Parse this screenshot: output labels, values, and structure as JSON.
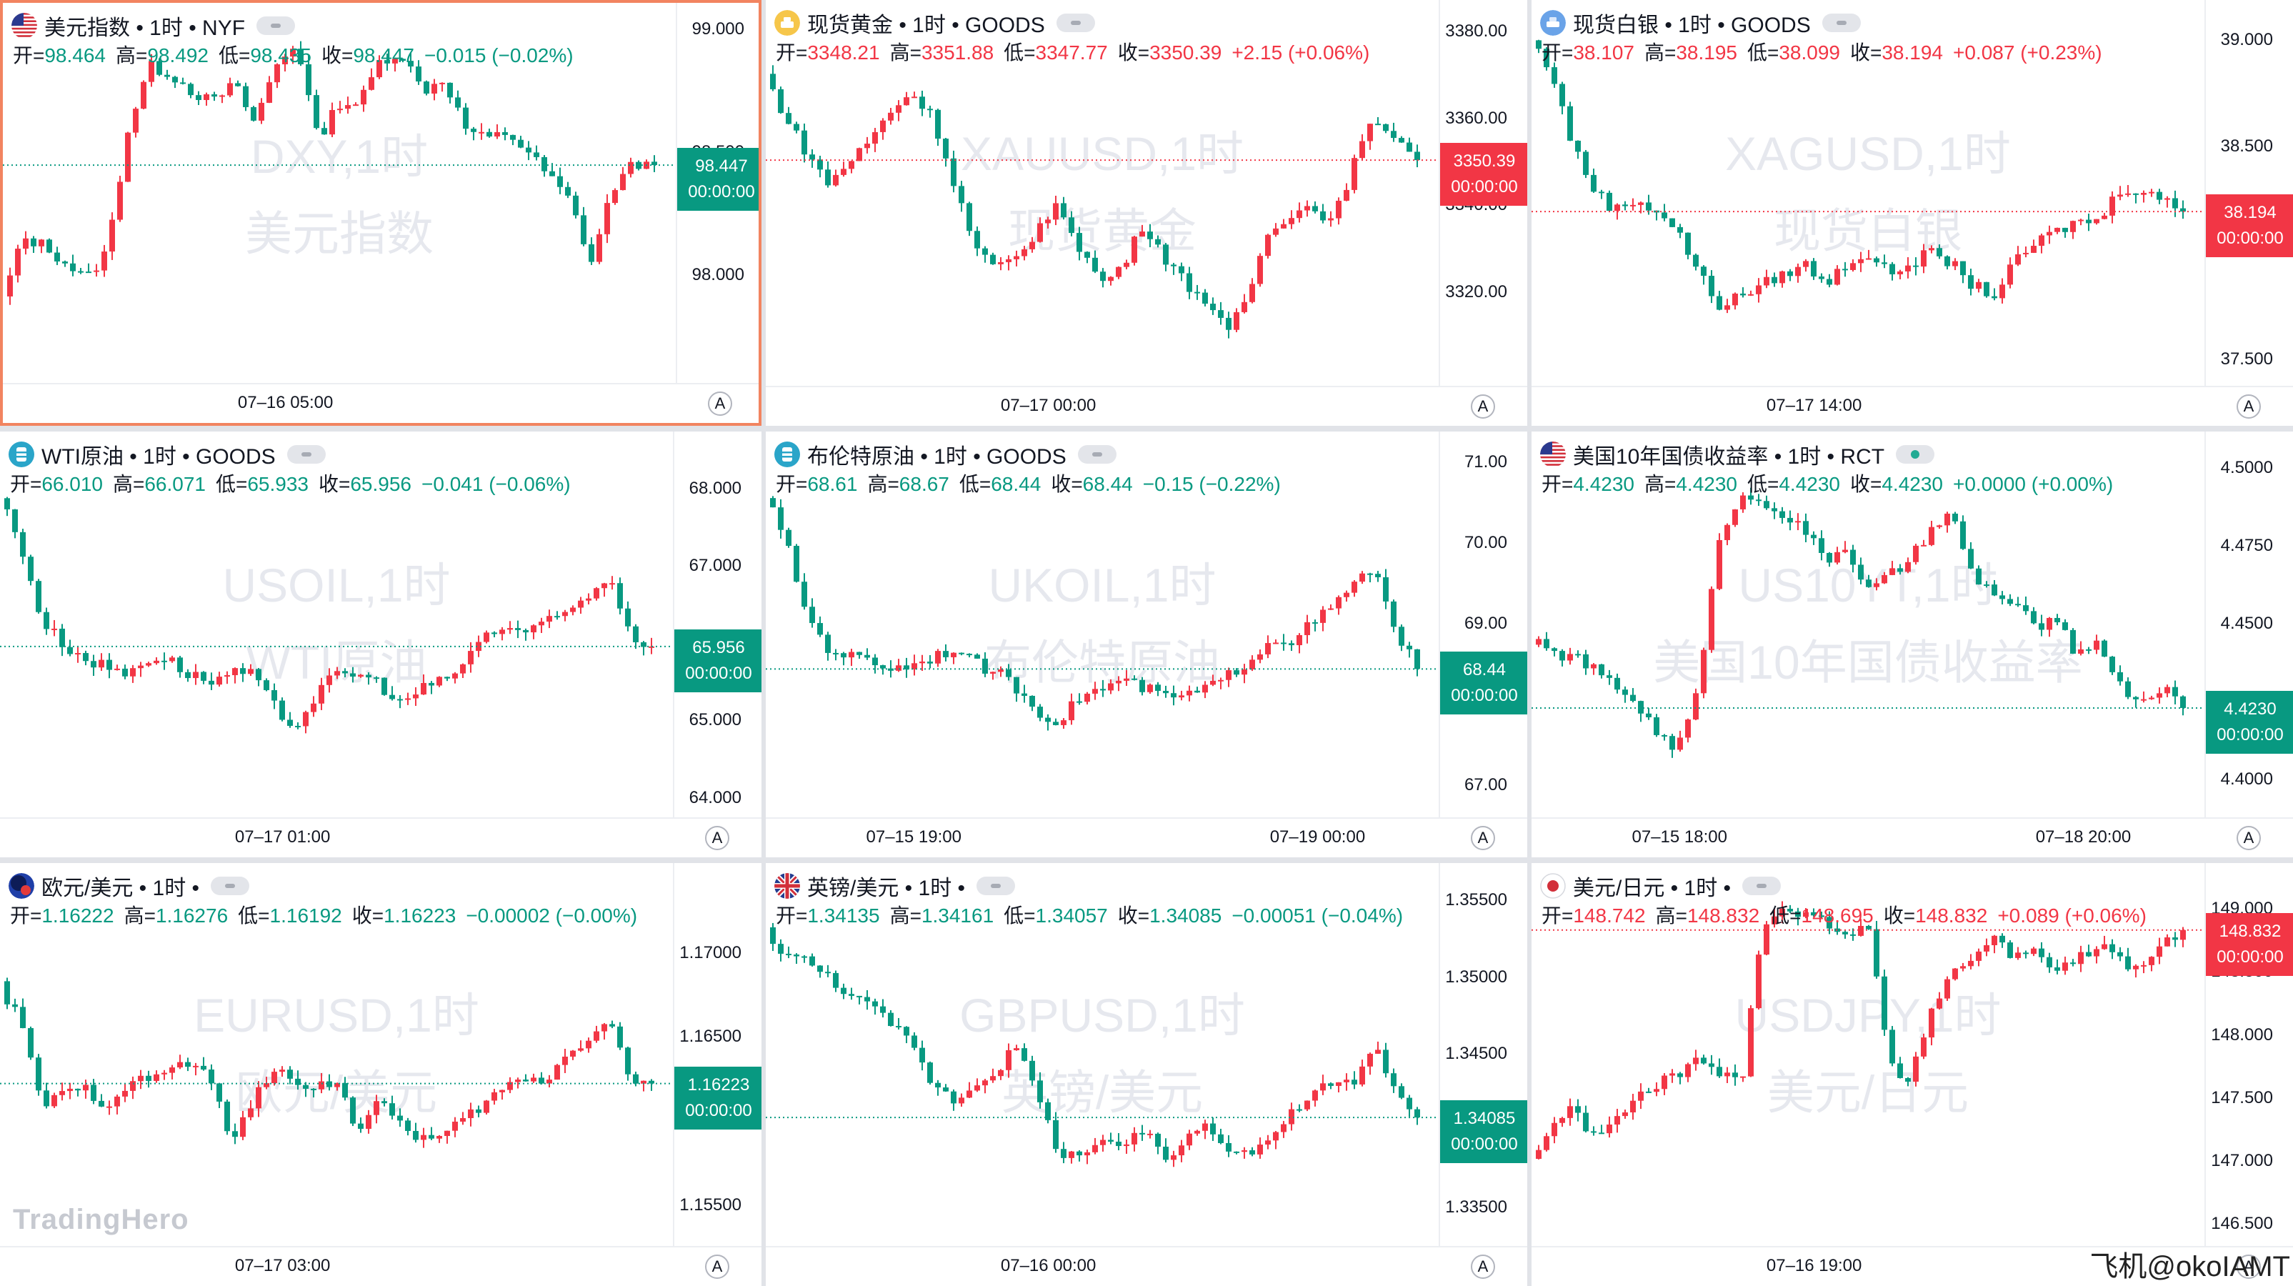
{
  "colors": {
    "up": "#f23645",
    "down": "#089981",
    "selected_border": "#f28460"
  },
  "brand": "TradingHero",
  "credit": "飞机@okoIAMT",
  "panels": [
    {
      "id": "dxy",
      "selected": true,
      "icon": "us-flag-icon",
      "title": "美元指数 • 1时 • NYF",
      "ohlc": {
        "o": "98.464",
        "h": "98.492",
        "l": "98.435",
        "c": "98.447",
        "chg": "−0.015 (−0.02%)",
        "dir": "down"
      },
      "watermark": [
        "DXY,1时",
        "美元指数"
      ],
      "y_ticks": [
        "99.000",
        "98.500",
        "98.000"
      ],
      "last_price": "98.447",
      "countdown": "00:00:00",
      "x_ticks": [
        "07–16 05:00"
      ],
      "auto": "A",
      "chart_data": {
        "type": "candlestick",
        "ylim": [
          97.6,
          99.05
        ],
        "last": 98.447,
        "path": [
          97.9,
          98.15,
          98.12,
          98.05,
          97.98,
          98.1,
          98.6,
          98.85,
          98.82,
          98.75,
          98.7,
          98.78,
          98.62,
          98.85,
          98.95,
          98.55,
          98.7,
          98.7,
          98.88,
          98.9,
          98.75,
          98.8,
          98.6,
          98.55,
          98.58,
          98.5,
          98.4,
          98.3,
          98.05,
          98.35,
          98.45,
          98.45
        ]
      }
    },
    {
      "id": "xau",
      "selected": false,
      "icon": "gold-icon",
      "title": "现货黄金 • 1时 • GOODS",
      "ohlc": {
        "o": "3348.21",
        "h": "3351.88",
        "l": "3347.77",
        "c": "3350.39",
        "chg": "+2.15 (+0.06%)",
        "dir": "up"
      },
      "watermark": [
        "XAUUSD,1时",
        "现货黄金"
      ],
      "y_ticks": [
        "3380.00",
        "3360.00",
        "3340.00",
        "3320.00"
      ],
      "last_price": "3350.39",
      "countdown": "00:00:00",
      "x_ticks": [
        "07–17 00:00"
      ],
      "auto": "A",
      "chart_data": {
        "type": "candlestick",
        "ylim": [
          3302,
          3384
        ],
        "last": 3350.39,
        "path": [
          3370,
          3360,
          3352,
          3345,
          3350,
          3355,
          3362,
          3366,
          3360,
          3345,
          3330,
          3325,
          3328,
          3335,
          3340,
          3330,
          3322,
          3326,
          3336,
          3328,
          3322,
          3318,
          3310,
          3320,
          3335,
          3338,
          3340,
          3336,
          3350,
          3360,
          3356,
          3350
        ]
      }
    },
    {
      "id": "xag",
      "selected": false,
      "icon": "silver-icon",
      "title": "现货白银 • 1时 • GOODS",
      "ohlc": {
        "o": "38.107",
        "h": "38.195",
        "l": "38.099",
        "c": "38.194",
        "chg": "+0.087 (+0.23%)",
        "dir": "up"
      },
      "watermark": [
        "XAGUSD,1时",
        "现货白银"
      ],
      "y_ticks": [
        "39.000",
        "38.500",
        "37.500"
      ],
      "last_price": "38.194",
      "countdown": "00:00:00",
      "x_ticks": [
        "07–17 14:00"
      ],
      "auto": "A",
      "chart_data": {
        "type": "candlestick",
        "ylim": [
          37.45,
          39.12
        ],
        "last": 38.194,
        "path": [
          39.0,
          38.85,
          38.5,
          38.3,
          38.2,
          38.25,
          38.2,
          38.1,
          37.9,
          37.75,
          37.8,
          37.85,
          37.9,
          37.95,
          37.85,
          37.95,
          38.0,
          37.9,
          37.95,
          38.0,
          37.95,
          37.85,
          37.8,
          37.95,
          38.05,
          38.1,
          38.15,
          38.15,
          38.3,
          38.3,
          38.25,
          38.2
        ]
      }
    },
    {
      "id": "usoil",
      "selected": false,
      "icon": "oil-icon",
      "title": "WTI原油 • 1时 • GOODS",
      "ohlc": {
        "o": "66.010",
        "h": "66.071",
        "l": "65.933",
        "c": "65.956",
        "chg": "−0.041 (−0.06%)",
        "dir": "down"
      },
      "watermark": [
        "USOIL,1时",
        "WTI原油"
      ],
      "y_ticks": [
        "68.000",
        "67.000",
        "65.000",
        "64.000"
      ],
      "last_price": "65.956",
      "countdown": "00:00:00",
      "x_ticks": [
        "07–17 01:00"
      ],
      "auto": "A",
      "chart_data": {
        "type": "candlestick",
        "ylim": [
          63.95,
          68.55
        ],
        "last": 65.956,
        "path": [
          67.9,
          67.3,
          66.3,
          66.0,
          65.8,
          65.7,
          65.6,
          65.8,
          65.8,
          65.6,
          65.5,
          65.6,
          65.6,
          65.2,
          64.9,
          65.3,
          65.6,
          65.6,
          65.5,
          65.2,
          65.4,
          65.5,
          65.7,
          66.1,
          66.2,
          66.15,
          66.25,
          66.4,
          66.6,
          66.9,
          66.1,
          65.95
        ]
      }
    },
    {
      "id": "ukoil",
      "selected": false,
      "icon": "oil-icon",
      "title": "布伦特原油 • 1时 • GOODS",
      "ohlc": {
        "o": "68.61",
        "h": "68.67",
        "l": "68.44",
        "c": "68.44",
        "chg": "−0.15 (−0.22%)",
        "dir": "down"
      },
      "watermark": [
        "UKOIL,1时",
        "布伦特原油"
      ],
      "y_ticks": [
        "71.00",
        "70.00",
        "69.00",
        "67.00"
      ],
      "last_price": "68.44",
      "countdown": "00:00:00",
      "x_ticks": [
        "07–15 19:00",
        "07–19 00:00"
      ],
      "auto": "A",
      "chart_data": {
        "type": "candlestick",
        "ylim": [
          66.8,
          71.2
        ],
        "last": 68.44,
        "path": [
          70.6,
          70.0,
          69.1,
          68.7,
          68.6,
          68.55,
          68.45,
          68.5,
          68.6,
          68.7,
          68.5,
          68.4,
          68.2,
          67.9,
          67.8,
          68.1,
          68.2,
          68.3,
          68.2,
          68.1,
          68.1,
          68.2,
          68.35,
          68.55,
          68.8,
          68.8,
          69.0,
          69.2,
          69.5,
          69.7,
          68.8,
          68.5
        ]
      }
    },
    {
      "id": "us10y",
      "selected": false,
      "icon": "us-flag-icon",
      "title": "美国10年国债收益率 • 1时 • RCT",
      "ohlc": {
        "o": "4.4230",
        "h": "4.4230",
        "l": "4.4230",
        "c": "4.4230",
        "chg": "+0.0000 (+0.00%)",
        "dir": "down"
      },
      "watermark": [
        "US10YT,1时",
        "美国10年国债收益率"
      ],
      "y_ticks": [
        "4.5000",
        "4.4750",
        "4.4500",
        "4.4000"
      ],
      "last_price": "4.4230",
      "countdown": "00:00:00",
      "x_ticks": [
        "07–15 18:00",
        "07–18 20:00"
      ],
      "auto": "A",
      "chart_data": {
        "type": "candlestick",
        "ylim": [
          4.393,
          4.507
        ],
        "last": 4.423,
        "path": [
          4.445,
          4.44,
          4.44,
          4.435,
          4.43,
          4.425,
          4.415,
          4.41,
          4.43,
          4.48,
          4.49,
          4.49,
          4.485,
          4.48,
          4.47,
          4.475,
          4.46,
          4.465,
          4.47,
          4.48,
          4.485,
          4.465,
          4.46,
          4.455,
          4.45,
          4.45,
          4.44,
          4.445,
          4.43,
          4.425,
          4.43,
          4.423
        ]
      }
    },
    {
      "id": "eurusd",
      "selected": false,
      "icon": "eu-flag-icon",
      "title": "欧元/美元 • 1时 •",
      "ohlc": {
        "o": "1.16222",
        "h": "1.16276",
        "l": "1.16192",
        "c": "1.16223",
        "chg": "−0.00002 (−0.00%)",
        "dir": "down"
      },
      "watermark": [
        "EURUSD,1时",
        "欧元/美元"
      ],
      "y_ticks": [
        "1.17000",
        "1.16500",
        "1.15500"
      ],
      "last_price": "1.16223",
      "countdown": "00:00:00",
      "x_ticks": [
        "07–17 03:00"
      ],
      "auto": "A",
      "chart_data": {
        "type": "candlestick",
        "ylim": [
          1.1535,
          1.1745
        ],
        "last": 1.16223,
        "path": [
          1.168,
          1.166,
          1.161,
          1.1615,
          1.162,
          1.161,
          1.162,
          1.1625,
          1.163,
          1.1635,
          1.1625,
          1.159,
          1.161,
          1.163,
          1.1625,
          1.162,
          1.1625,
          1.1595,
          1.161,
          1.16,
          1.159,
          1.159,
          1.16,
          1.161,
          1.162,
          1.1625,
          1.1625,
          1.164,
          1.165,
          1.166,
          1.1625,
          1.16223
        ]
      }
    },
    {
      "id": "gbpusd",
      "selected": false,
      "icon": "uk-flag-icon",
      "title": "英镑/美元 • 1时 •",
      "ohlc": {
        "o": "1.34135",
        "h": "1.34161",
        "l": "1.34057",
        "c": "1.34085",
        "chg": "−0.00051 (−0.04%)",
        "dir": "down"
      },
      "watermark": [
        "GBPUSD,1时",
        "英镑/美元"
      ],
      "y_ticks": [
        "1.35500",
        "1.35000",
        "1.34500",
        "1.33500"
      ],
      "last_price": "1.34085",
      "countdown": "00:00:00",
      "x_ticks": [
        "07–16 00:00"
      ],
      "auto": "A",
      "chart_data": {
        "type": "candlestick",
        "ylim": [
          1.3335,
          1.3565
        ],
        "last": 1.34085,
        "path": [
          1.353,
          1.3515,
          1.351,
          1.35,
          1.349,
          1.348,
          1.347,
          1.3455,
          1.343,
          1.342,
          1.343,
          1.344,
          1.3455,
          1.342,
          1.3385,
          1.3385,
          1.339,
          1.339,
          1.34,
          1.338,
          1.3395,
          1.3405,
          1.339,
          1.3385,
          1.3395,
          1.341,
          1.3425,
          1.343,
          1.343,
          1.3455,
          1.3425,
          1.34085
        ]
      }
    },
    {
      "id": "usdjpy",
      "selected": false,
      "icon": "jp-flag-icon",
      "title": "美元/日元 • 1时 •",
      "ohlc": {
        "o": "148.742",
        "h": "148.832",
        "l": "148.695",
        "c": "148.832",
        "chg": "+0.089 (+0.06%)",
        "dir": "up"
      },
      "watermark": [
        "USDJPY,1时",
        "美元/日元"
      ],
      "y_ticks": [
        "149.000",
        "148.500",
        "148.000",
        "147.500",
        "147.000",
        "146.500"
      ],
      "last_price": "148.832",
      "countdown": "00:00:00",
      "x_ticks": [
        "07–16 19:00"
      ],
      "auto": "A",
      "chart_data": {
        "type": "candlestick",
        "ylim": [
          146.45,
          149.25
        ],
        "last": 148.832,
        "path": [
          147.0,
          147.3,
          147.4,
          147.2,
          147.3,
          147.5,
          147.6,
          147.7,
          147.8,
          147.7,
          147.6,
          148.9,
          149.0,
          148.95,
          148.9,
          148.8,
          148.9,
          147.8,
          147.6,
          148.2,
          148.5,
          148.6,
          148.8,
          148.6,
          148.7,
          148.5,
          148.6,
          148.7,
          148.6,
          148.5,
          148.7,
          148.832
        ]
      }
    }
  ]
}
